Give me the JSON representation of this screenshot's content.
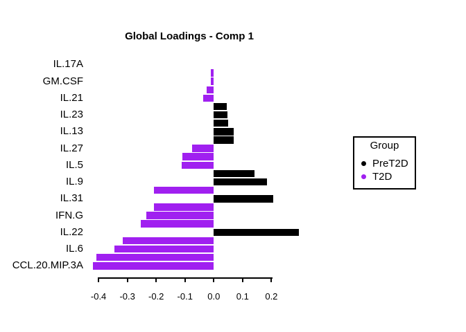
{
  "chart_data": {
    "type": "bar",
    "orientation": "horizontal",
    "title": "Global Loadings - Comp 1",
    "xlabel": "",
    "ylabel": "",
    "xlim": [
      -0.45,
      0.32
    ],
    "x_ticks": [
      "-0.4",
      "-0.3",
      "-0.2",
      "-0.1",
      "0.0",
      "0.1",
      "0.2"
    ],
    "x_tick_values": [
      -0.4,
      -0.3,
      -0.2,
      -0.1,
      0.0,
      0.1,
      0.2
    ],
    "grid": false,
    "legend": {
      "title": "Group",
      "position": "right",
      "entries": [
        {
          "label": "PreT2D",
          "color": "#000000"
        },
        {
          "label": "T2D",
          "color": "#A020F0"
        }
      ]
    },
    "group_colors": {
      "PreT2D": "#000000",
      "T2D": "#A020F0"
    },
    "bars": [
      {
        "label": "IL.17A",
        "value": 0.0,
        "group": null
      },
      {
        "label": "",
        "value": -0.01,
        "group": "T2D"
      },
      {
        "label": "GM.CSF",
        "value": -0.01,
        "group": "T2D"
      },
      {
        "label": "",
        "value": -0.025,
        "group": "T2D"
      },
      {
        "label": "IL.21",
        "value": -0.038,
        "group": "T2D"
      },
      {
        "label": "",
        "value": 0.046,
        "group": "PreT2D"
      },
      {
        "label": "IL.23",
        "value": 0.048,
        "group": "PreT2D"
      },
      {
        "label": "",
        "value": 0.05,
        "group": "PreT2D"
      },
      {
        "label": "IL.13",
        "value": 0.068,
        "group": "PreT2D"
      },
      {
        "label": "",
        "value": 0.07,
        "group": "PreT2D"
      },
      {
        "label": "IL.27",
        "value": -0.076,
        "group": "T2D"
      },
      {
        "label": "",
        "value": -0.11,
        "group": "T2D"
      },
      {
        "label": "IL.5",
        "value": -0.112,
        "group": "T2D"
      },
      {
        "label": "",
        "value": 0.141,
        "group": "PreT2D"
      },
      {
        "label": "IL.9",
        "value": 0.184,
        "group": "PreT2D"
      },
      {
        "label": "",
        "value": -0.208,
        "group": "T2D"
      },
      {
        "label": "IL.31",
        "value": 0.206,
        "group": "PreT2D"
      },
      {
        "label": "",
        "value": -0.208,
        "group": "T2D"
      },
      {
        "label": "IFN.G",
        "value": -0.233,
        "group": "T2D"
      },
      {
        "label": "",
        "value": -0.254,
        "group": "T2D"
      },
      {
        "label": "IL.22",
        "value": 0.295,
        "group": "PreT2D"
      },
      {
        "label": "",
        "value": -0.317,
        "group": "T2D"
      },
      {
        "label": "IL.6",
        "value": -0.345,
        "group": "T2D"
      },
      {
        "label": "",
        "value": -0.407,
        "group": "T2D"
      },
      {
        "label": "CCL.20.MIP.3A",
        "value": -0.42,
        "group": "T2D"
      }
    ]
  },
  "colors": {
    "background": "#FFFFFF",
    "axis": "#000000",
    "text": "#000000"
  }
}
